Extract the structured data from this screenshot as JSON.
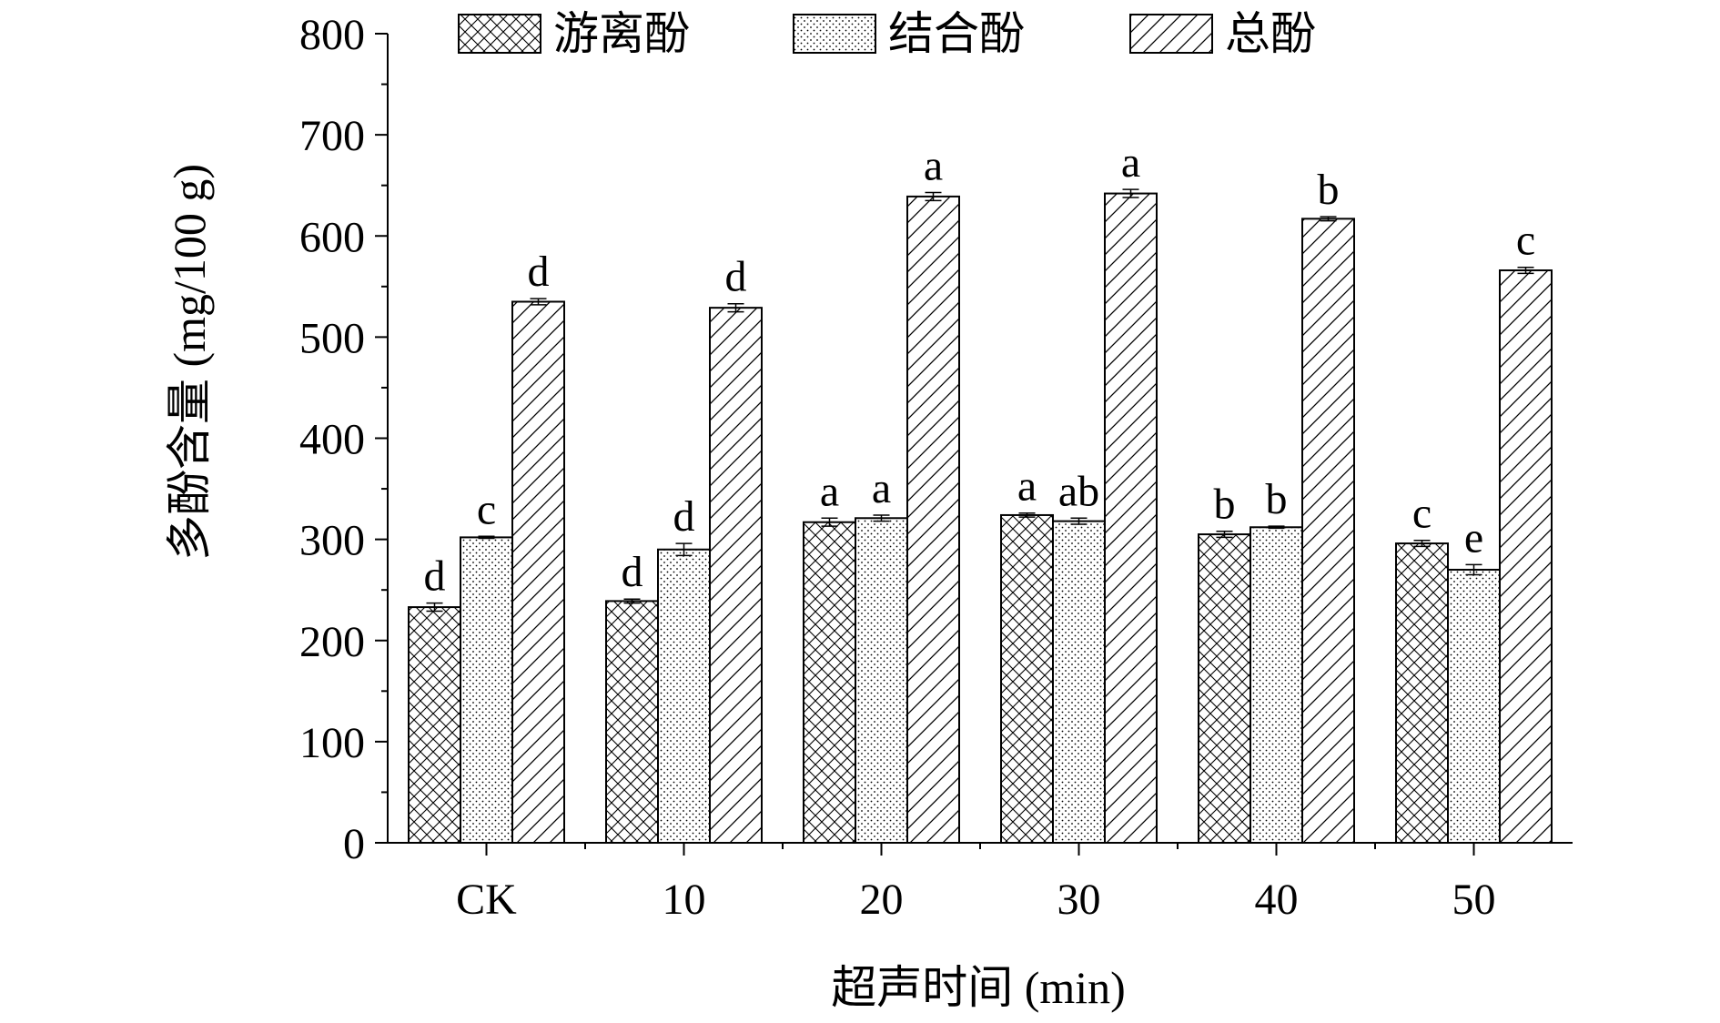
{
  "chart_data": {
    "type": "bar",
    "xlabel": "超声时间 (min)",
    "ylabel": "多酚含量 (mg/100 g)",
    "ylim": [
      0,
      800
    ],
    "yticks": [
      0,
      100,
      200,
      300,
      400,
      500,
      600,
      700,
      800
    ],
    "categories": [
      "CK",
      "10",
      "20",
      "30",
      "40",
      "50"
    ],
    "legend_position": "top",
    "grid": false,
    "series": [
      {
        "name": "游离酚",
        "pattern": "crosshatch",
        "values": [
          233,
          239,
          317,
          324,
          305,
          296
        ],
        "errors": [
          4,
          2,
          4,
          2,
          3,
          3
        ],
        "significance": [
          "d",
          "d",
          "a",
          "a",
          "b",
          "c"
        ]
      },
      {
        "name": "结合酚",
        "pattern": "dots",
        "values": [
          302,
          290,
          321,
          318,
          312,
          270
        ],
        "errors": [
          1,
          6,
          3,
          3,
          1,
          5
        ],
        "significance": [
          "c",
          "d",
          "a",
          "ab",
          "b",
          "e"
        ]
      },
      {
        "name": "总酚",
        "pattern": "diagonal",
        "values": [
          535,
          529,
          639,
          642,
          617,
          566
        ],
        "errors": [
          3,
          4,
          4,
          4,
          2,
          3
        ],
        "significance": [
          "d",
          "d",
          "a",
          "a",
          "b",
          "c"
        ]
      }
    ]
  }
}
